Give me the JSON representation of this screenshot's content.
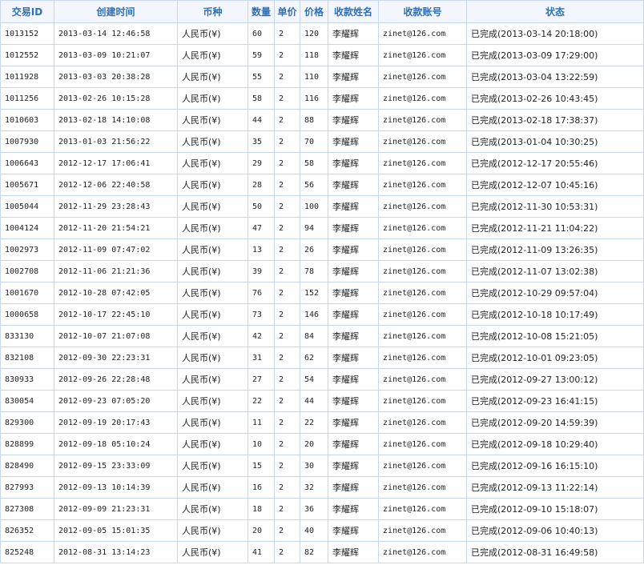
{
  "table": {
    "headers": [
      "交易ID",
      "创建时间",
      "币种",
      "数量",
      "单价",
      "价格",
      "收款姓名",
      "收款账号",
      "状态"
    ],
    "rows": [
      [
        "1013152",
        "2013-03-14 12:46:58",
        "人民币(¥)",
        "60",
        "2",
        "120",
        "李耀辉",
        "zinet@126.com",
        "已完成(2013-03-14 20:18:00)"
      ],
      [
        "1012552",
        "2013-03-09 10:21:07",
        "人民币(¥)",
        "59",
        "2",
        "118",
        "李耀辉",
        "zinet@126.com",
        "已完成(2013-03-09 17:29:00)"
      ],
      [
        "1011928",
        "2013-03-03 20:38:28",
        "人民币(¥)",
        "55",
        "2",
        "110",
        "李耀辉",
        "zinet@126.com",
        "已完成(2013-03-04 13:22:59)"
      ],
      [
        "1011256",
        "2013-02-26 10:15:28",
        "人民币(¥)",
        "58",
        "2",
        "116",
        "李耀辉",
        "zinet@126.com",
        "已完成(2013-02-26 10:43:45)"
      ],
      [
        "1010603",
        "2013-02-18 14:10:08",
        "人民币(¥)",
        "44",
        "2",
        "88",
        "李耀辉",
        "zinet@126.com",
        "已完成(2013-02-18 17:38:37)"
      ],
      [
        "1007930",
        "2013-01-03 21:56:22",
        "人民币(¥)",
        "35",
        "2",
        "70",
        "李耀辉",
        "zinet@126.com",
        "已完成(2013-01-04 10:30:25)"
      ],
      [
        "1006643",
        "2012-12-17 17:06:41",
        "人民币(¥)",
        "29",
        "2",
        "58",
        "李耀辉",
        "zinet@126.com",
        "已完成(2012-12-17 20:55:46)"
      ],
      [
        "1005671",
        "2012-12-06 22:40:58",
        "人民币(¥)",
        "28",
        "2",
        "56",
        "李耀辉",
        "zinet@126.com",
        "已完成(2012-12-07 10:45:16)"
      ],
      [
        "1005044",
        "2012-11-29 23:28:43",
        "人民币(¥)",
        "50",
        "2",
        "100",
        "李耀辉",
        "zinet@126.com",
        "已完成(2012-11-30 10:53:31)"
      ],
      [
        "1004124",
        "2012-11-20 21:54:21",
        "人民币(¥)",
        "47",
        "2",
        "94",
        "李耀辉",
        "zinet@126.com",
        "已完成(2012-11-21 11:04:22)"
      ],
      [
        "1002973",
        "2012-11-09 07:47:02",
        "人民币(¥)",
        "13",
        "2",
        "26",
        "李耀辉",
        "zinet@126.com",
        "已完成(2012-11-09 13:26:35)"
      ],
      [
        "1002708",
        "2012-11-06 21:21:36",
        "人民币(¥)",
        "39",
        "2",
        "78",
        "李耀辉",
        "zinet@126.com",
        "已完成(2012-11-07 13:02:38)"
      ],
      [
        "1001670",
        "2012-10-28 07:42:05",
        "人民币(¥)",
        "76",
        "2",
        "152",
        "李耀辉",
        "zinet@126.com",
        "已完成(2012-10-29 09:57:04)"
      ],
      [
        "1000658",
        "2012-10-17 22:45:10",
        "人民币(¥)",
        "73",
        "2",
        "146",
        "李耀辉",
        "zinet@126.com",
        "已完成(2012-10-18 10:17:49)"
      ],
      [
        "833130",
        "2012-10-07 21:07:08",
        "人民币(¥)",
        "42",
        "2",
        "84",
        "李耀辉",
        "zinet@126.com",
        "已完成(2012-10-08 15:21:05)"
      ],
      [
        "832108",
        "2012-09-30 22:23:31",
        "人民币(¥)",
        "31",
        "2",
        "62",
        "李耀辉",
        "zinet@126.com",
        "已完成(2012-10-01 09:23:05)"
      ],
      [
        "830933",
        "2012-09-26 22:28:48",
        "人民币(¥)",
        "27",
        "2",
        "54",
        "李耀辉",
        "zinet@126.com",
        "已完成(2012-09-27 13:00:12)"
      ],
      [
        "830054",
        "2012-09-23 07:05:20",
        "人民币(¥)",
        "22",
        "2",
        "44",
        "李耀辉",
        "zinet@126.com",
        "已完成(2012-09-23 16:41:15)"
      ],
      [
        "829300",
        "2012-09-19 20:17:43",
        "人民币(¥)",
        "11",
        "2",
        "22",
        "李耀辉",
        "zinet@126.com",
        "已完成(2012-09-20 14:59:39)"
      ],
      [
        "828899",
        "2012-09-18 05:10:24",
        "人民币(¥)",
        "10",
        "2",
        "20",
        "李耀辉",
        "zinet@126.com",
        "已完成(2012-09-18 10:29:40)"
      ],
      [
        "828490",
        "2012-09-15 23:33:09",
        "人民币(¥)",
        "15",
        "2",
        "30",
        "李耀辉",
        "zinet@126.com",
        "已完成(2012-09-16 16:15:10)"
      ],
      [
        "827993",
        "2012-09-13 10:14:39",
        "人民币(¥)",
        "16",
        "2",
        "32",
        "李耀辉",
        "zinet@126.com",
        "已完成(2012-09-13 11:22:14)"
      ],
      [
        "827308",
        "2012-09-09 21:23:31",
        "人民币(¥)",
        "18",
        "2",
        "36",
        "李耀辉",
        "zinet@126.com",
        "已完成(2012-09-10 15:18:07)"
      ],
      [
        "826352",
        "2012-09-05 15:01:35",
        "人民币(¥)",
        "20",
        "2",
        "40",
        "李耀辉",
        "zinet@126.com",
        "已完成(2012-09-06 10:40:13)"
      ],
      [
        "825248",
        "2012-08-31 13:14:23",
        "人民币(¥)",
        "41",
        "2",
        "82",
        "李耀辉",
        "zinet@126.com",
        "已完成(2012-08-31 16:49:58)"
      ]
    ]
  }
}
